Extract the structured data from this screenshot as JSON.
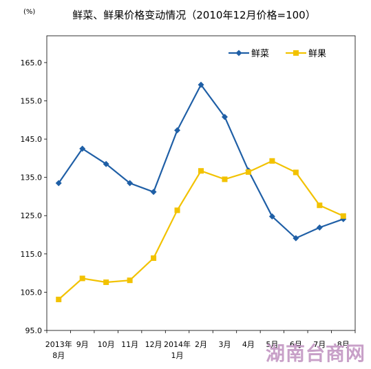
{
  "chart_data": {
    "type": "line",
    "title": "鲜菜、鲜果价格变动情况（2010年12月价格=100）",
    "unit_label": "(%)",
    "x_labels": [
      [
        "2013年",
        "8月"
      ],
      [
        "9月"
      ],
      [
        "10月"
      ],
      [
        "11月"
      ],
      [
        "12月"
      ],
      [
        "2014年",
        "1月"
      ],
      [
        "2月"
      ],
      [
        "3月"
      ],
      [
        "4月"
      ],
      [
        "5月"
      ],
      [
        "6月"
      ],
      [
        "7月"
      ],
      [
        "8月"
      ]
    ],
    "y_ticks": [
      "95.0",
      "105.0",
      "115.0",
      "125.0",
      "135.0",
      "145.0",
      "155.0",
      "165.0"
    ],
    "ylim": [
      95,
      172
    ],
    "grid": false,
    "legend_position": "top-right",
    "series": [
      {
        "name": "鲜菜",
        "color": "#1f5fa6",
        "marker": "diamond",
        "values": [
          133.5,
          142.5,
          138.5,
          133.5,
          131.2,
          147.3,
          159.2,
          150.8,
          136.8,
          124.8,
          119.1,
          121.9,
          124.1
        ]
      },
      {
        "name": "鲜果",
        "color": "#f2c200",
        "marker": "square",
        "values": [
          103.1,
          108.6,
          107.6,
          108.1,
          113.9,
          126.4,
          136.7,
          134.5,
          136.4,
          139.3,
          136.3,
          127.7,
          124.9
        ]
      }
    ]
  },
  "watermark": "湖南台商网"
}
